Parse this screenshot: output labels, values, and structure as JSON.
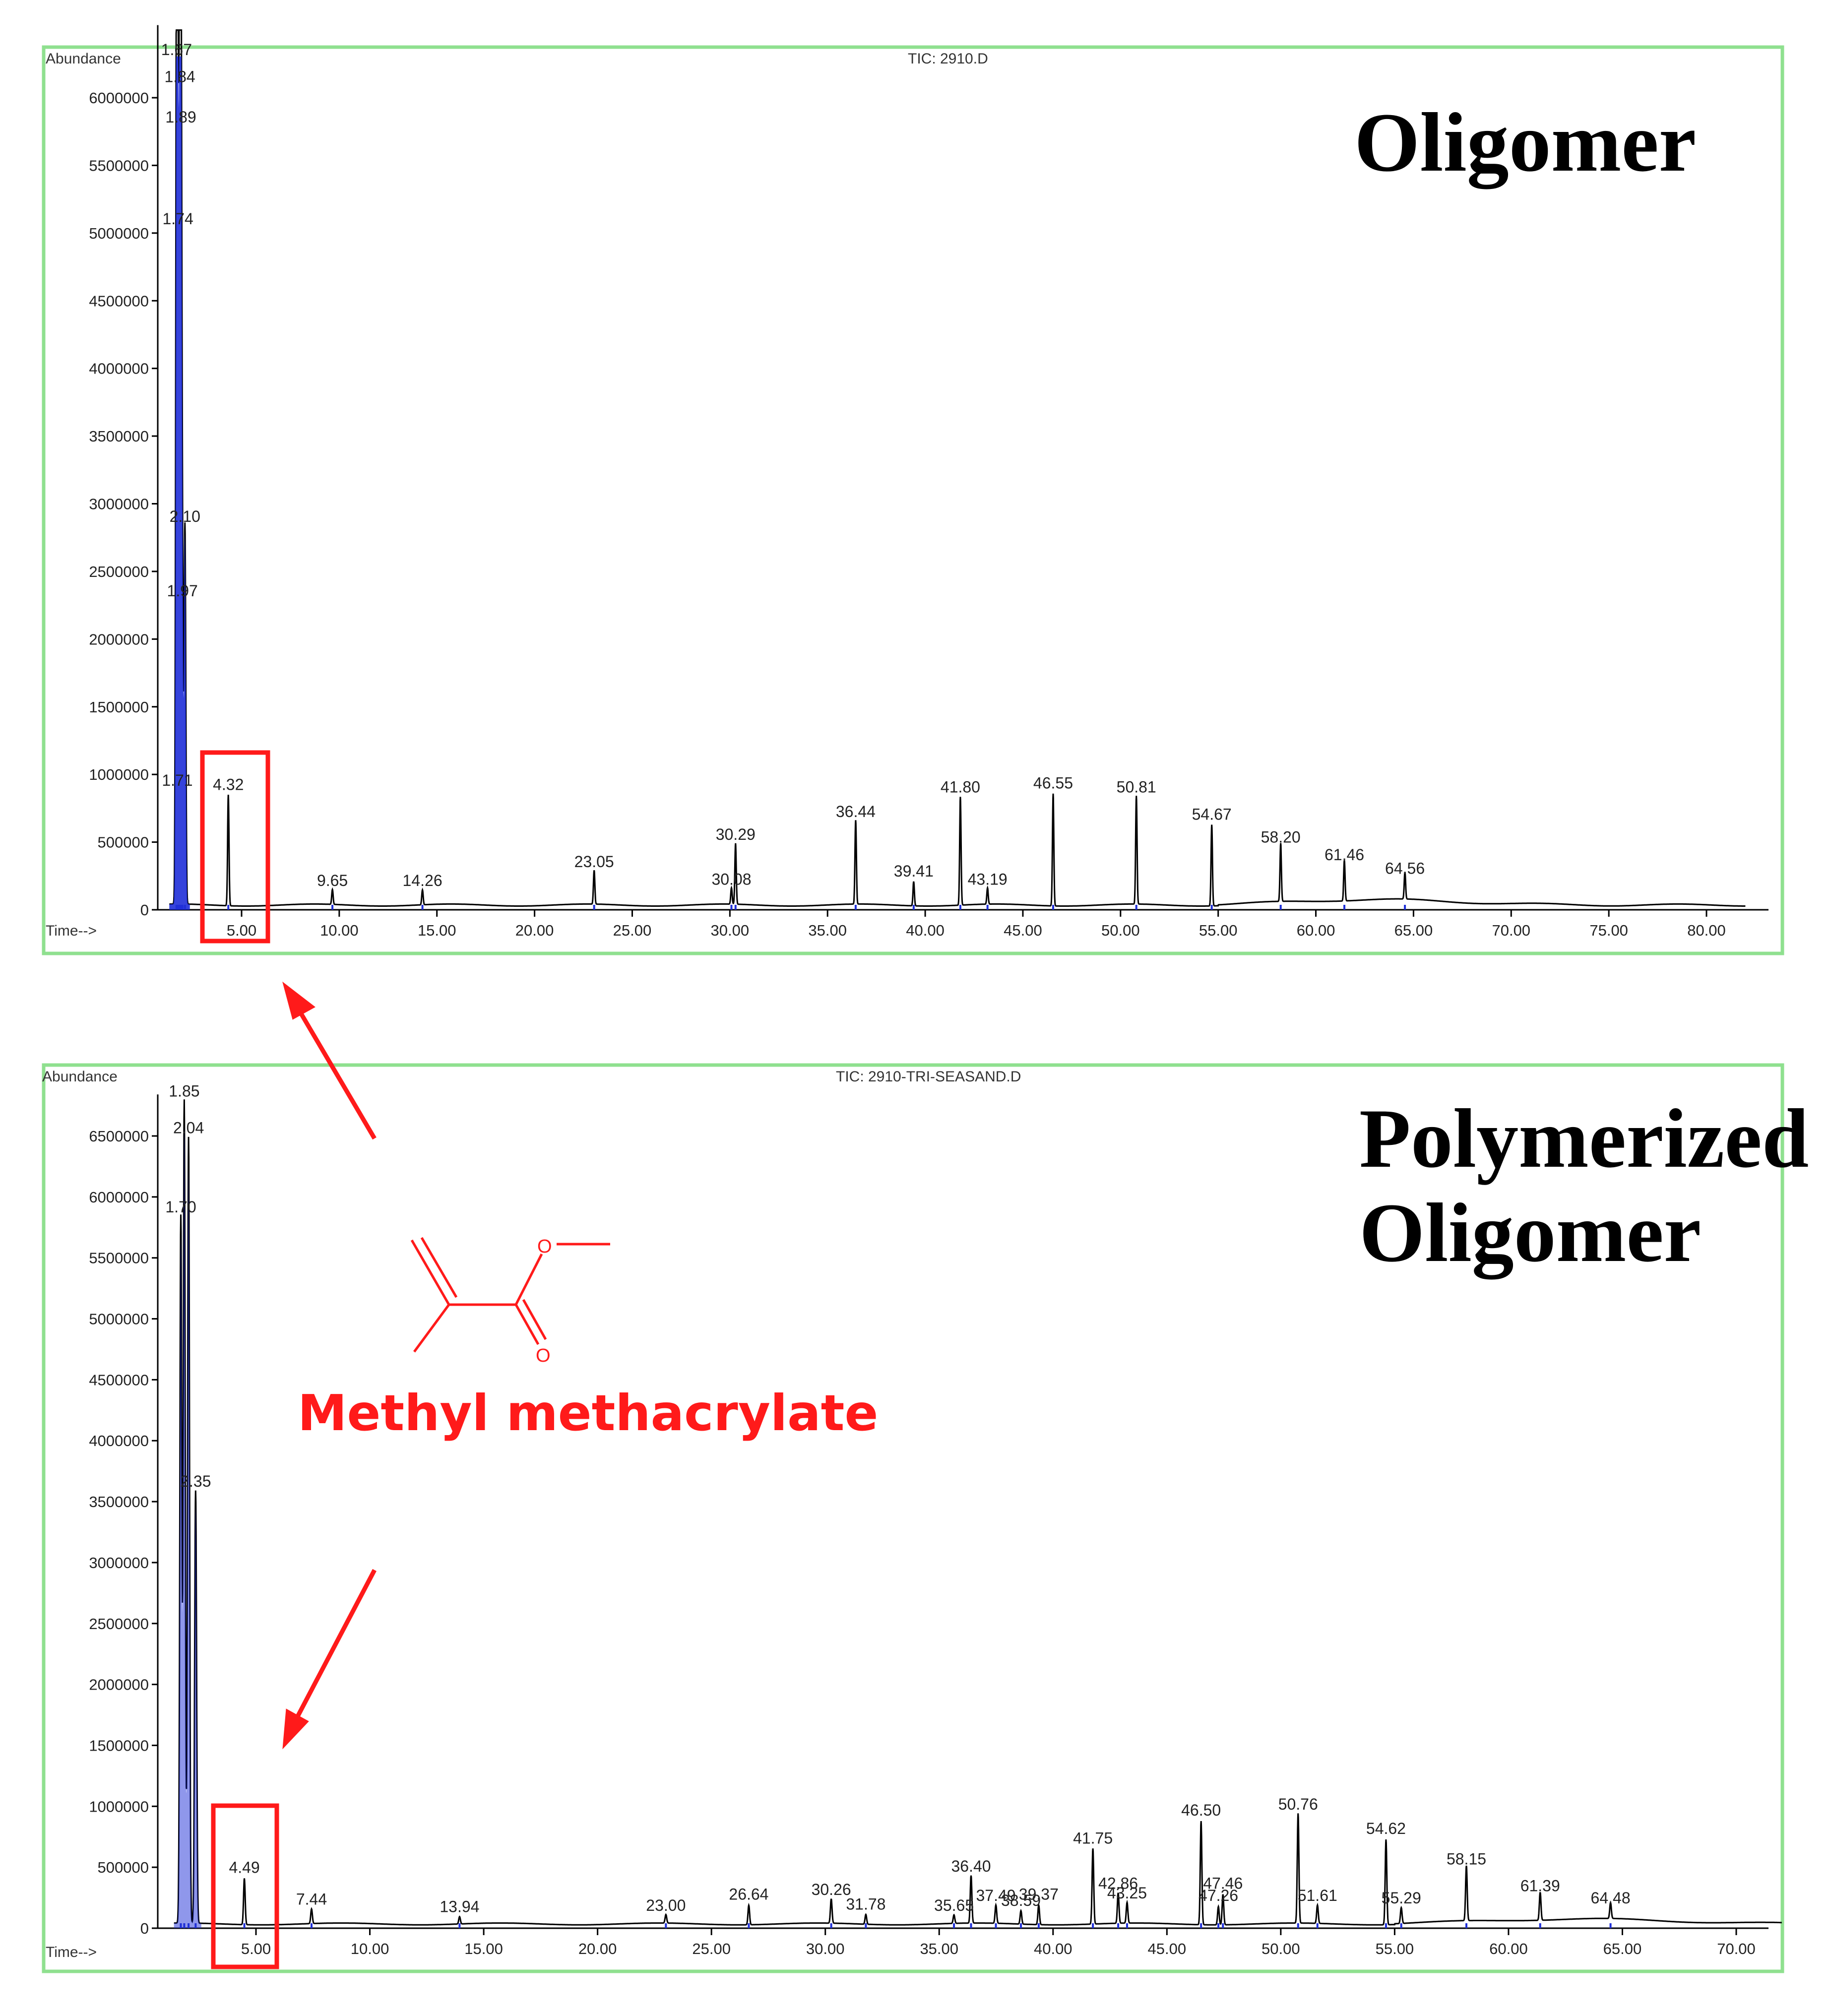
{
  "colors": {
    "frame": "#8fe08f",
    "trace": "#000000",
    "integration": "#1f2fd8",
    "accent": "#ff1a1a"
  },
  "annotation": {
    "label": "Methyl methacrylate",
    "ester_o": "O",
    "carbonyl_o": "O"
  },
  "chart_data": [
    {
      "type": "line",
      "title": "TIC: 2910.D",
      "ylabel": "Abundance",
      "xlabel": "Time-->",
      "panel_label": "Oligomer",
      "xlim": [
        0,
        82
      ],
      "ylim": [
        0,
        6500000
      ],
      "xticks": [
        "5.00",
        "10.00",
        "15.00",
        "20.00",
        "25.00",
        "30.00",
        "35.00",
        "40.00",
        "45.00",
        "50.00",
        "55.00",
        "60.00",
        "65.00",
        "70.00",
        "75.00",
        "80.00"
      ],
      "xtick_values": [
        5,
        10,
        15,
        20,
        25,
        30,
        35,
        40,
        45,
        50,
        55,
        60,
        65,
        70,
        75,
        80
      ],
      "yticks": [
        "0",
        "500000",
        "1000000",
        "1500000",
        "2000000",
        "2500000",
        "3000000",
        "3500000",
        "4000000",
        "4500000",
        "5000000",
        "5500000",
        "6000000"
      ],
      "ytick_values": [
        0,
        500000,
        1000000,
        1500000,
        2000000,
        2500000,
        3000000,
        3500000,
        4000000,
        4500000,
        5000000,
        5500000,
        6000000
      ],
      "highlighted_peak": "4.32",
      "peaks": [
        {
          "label": "1.67",
          "x": 1.67,
          "y": 6250000
        },
        {
          "label": "1.84",
          "x": 1.84,
          "y": 6050000
        },
        {
          "label": "1.89",
          "x": 1.89,
          "y": 5750000
        },
        {
          "label": "1.74",
          "x": 1.74,
          "y": 5000000
        },
        {
          "label": "2.10",
          "x": 2.1,
          "y": 2800000
        },
        {
          "label": "1.97",
          "x": 1.97,
          "y": 2250000
        },
        {
          "label": "1.71",
          "x": 1.71,
          "y": 850000
        },
        {
          "label": "4.32",
          "x": 4.32,
          "y": 820000
        },
        {
          "label": "9.65",
          "x": 9.65,
          "y": 110000
        },
        {
          "label": "14.26",
          "x": 14.26,
          "y": 110000
        },
        {
          "label": "23.05",
          "x": 23.05,
          "y": 250000
        },
        {
          "label": "30.29",
          "x": 30.29,
          "y": 450000
        },
        {
          "label": "30.08",
          "x": 30.08,
          "y": 120000
        },
        {
          "label": "36.44",
          "x": 36.44,
          "y": 620000
        },
        {
          "label": "39.41",
          "x": 39.41,
          "y": 180000
        },
        {
          "label": "41.80",
          "x": 41.8,
          "y": 800000
        },
        {
          "label": "43.19",
          "x": 43.19,
          "y": 120000
        },
        {
          "label": "46.55",
          "x": 46.55,
          "y": 830000
        },
        {
          "label": "50.81",
          "x": 50.81,
          "y": 800000
        },
        {
          "label": "54.67",
          "x": 54.67,
          "y": 600000
        },
        {
          "label": "58.20",
          "x": 58.2,
          "y": 430000
        },
        {
          "label": "61.46",
          "x": 61.46,
          "y": 300000
        },
        {
          "label": "64.56",
          "x": 64.56,
          "y": 200000
        }
      ]
    },
    {
      "type": "line",
      "title": "TIC: 2910-TRI-SEASAND.D",
      "ylabel": "Abundance",
      "xlabel": "Time-->",
      "panel_label": [
        "Polymerized",
        "Oligomer"
      ],
      "xlim": [
        0,
        72
      ],
      "ylim": [
        0,
        6800000
      ],
      "xticks": [
        "5.00",
        "10.00",
        "15.00",
        "20.00",
        "25.00",
        "30.00",
        "35.00",
        "40.00",
        "45.00",
        "50.00",
        "55.00",
        "60.00",
        "65.00",
        "70.00"
      ],
      "xtick_values": [
        5,
        10,
        15,
        20,
        25,
        30,
        35,
        40,
        45,
        50,
        55,
        60,
        65,
        70
      ],
      "yticks": [
        "0",
        "500000",
        "1000000",
        "1500000",
        "2000000",
        "2500000",
        "3000000",
        "3500000",
        "4000000",
        "4500000",
        "5000000",
        "5500000",
        "6000000",
        "6500000"
      ],
      "ytick_values": [
        0,
        500000,
        1000000,
        1500000,
        2000000,
        2500000,
        3000000,
        3500000,
        4000000,
        4500000,
        5000000,
        5500000,
        6000000,
        6500000
      ],
      "highlighted_peak": "4.49",
      "peaks": [
        {
          "label": "1.85",
          "x": 1.85,
          "y": 6750000
        },
        {
          "label": "2.04",
          "x": 2.04,
          "y": 6450000
        },
        {
          "label": "1.70",
          "x": 1.7,
          "y": 5800000
        },
        {
          "label": "2.35",
          "x": 2.35,
          "y": 3550000
        },
        {
          "label": "4.49",
          "x": 4.49,
          "y": 380000
        },
        {
          "label": "7.44",
          "x": 7.44,
          "y": 120000
        },
        {
          "label": "13.94",
          "x": 13.94,
          "y": 60000
        },
        {
          "label": "23.00",
          "x": 23.0,
          "y": 70000
        },
        {
          "label": "26.64",
          "x": 26.64,
          "y": 160000
        },
        {
          "label": "30.26",
          "x": 30.26,
          "y": 200000
        },
        {
          "label": "31.78",
          "x": 31.78,
          "y": 80000
        },
        {
          "label": "35.65",
          "x": 35.65,
          "y": 70000
        },
        {
          "label": "36.40",
          "x": 36.4,
          "y": 390000
        },
        {
          "label": "37.49",
          "x": 37.49,
          "y": 150000
        },
        {
          "label": "38.59",
          "x": 38.59,
          "y": 110000
        },
        {
          "label": "39.37",
          "x": 39.37,
          "y": 160000
        },
        {
          "label": "41.75",
          "x": 41.75,
          "y": 620000
        },
        {
          "label": "42.86",
          "x": 42.86,
          "y": 250000
        },
        {
          "label": "43.25",
          "x": 43.25,
          "y": 170000
        },
        {
          "label": "46.50",
          "x": 46.5,
          "y": 850000
        },
        {
          "label": "47.46",
          "x": 47.46,
          "y": 250000
        },
        {
          "label": "47.26",
          "x": 47.26,
          "y": 150000
        },
        {
          "label": "50.76",
          "x": 50.76,
          "y": 900000
        },
        {
          "label": "51.61",
          "x": 51.61,
          "y": 150000
        },
        {
          "label": "54.62",
          "x": 54.62,
          "y": 700000
        },
        {
          "label": "55.29",
          "x": 55.29,
          "y": 130000
        },
        {
          "label": "58.15",
          "x": 58.15,
          "y": 450000
        },
        {
          "label": "61.39",
          "x": 61.39,
          "y": 230000
        },
        {
          "label": "64.48",
          "x": 64.48,
          "y": 130000
        }
      ]
    }
  ]
}
